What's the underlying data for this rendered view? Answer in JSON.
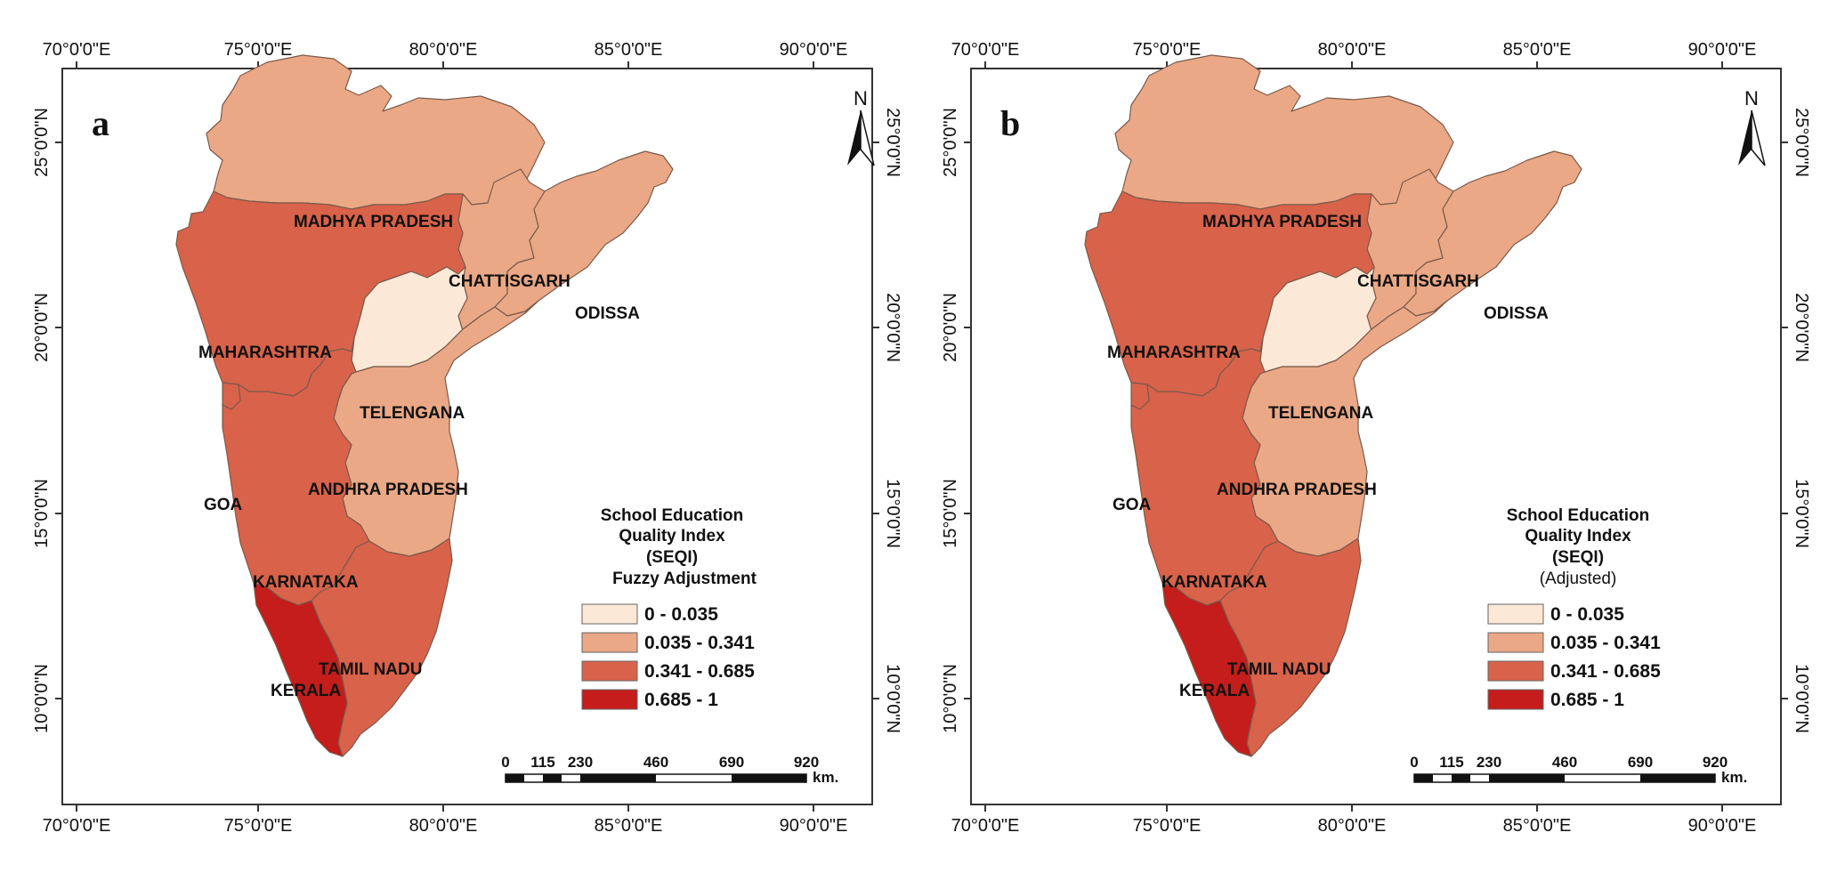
{
  "axes": {
    "lon_labels": [
      "70°0'0\"E",
      "75°0'0\"E",
      "80°0'0\"E",
      "85°0'0\"E",
      "90°0'0\"E"
    ],
    "lat_labels": [
      "25°0'0\"N",
      "20°0'0\"N",
      "15°0'0\"N",
      "10°0'0\"N"
    ]
  },
  "colors": {
    "class_1": "#fbe8d6",
    "class_2": "#eaa886",
    "class_3": "#d9624a",
    "class_4": "#c41d1b",
    "border": "#7a5a4a"
  },
  "north_arrow": {
    "label": "N"
  },
  "scale_bar": {
    "ticks": [
      "0",
      "115",
      "230",
      "460",
      "690",
      "920"
    ],
    "unit": "km."
  },
  "states": {
    "madhya_pradesh": "MADHYA PRADESH",
    "chattisgarh": "CHATTISGARH",
    "odissa": "ODISSA",
    "maharashtra": "MAHARASHTRA",
    "telengana": "TELENGANA",
    "andhra_pradesh": "ANDHRA PRADESH",
    "goa": "GOA",
    "karnataka": "KARNATAKA",
    "tamil_nadu": "TAMIL NADU",
    "kerala": "KERALA"
  },
  "legend_classes": [
    "0 - 0.035",
    "0.035 - 0.341",
    "0.341 - 0.685",
    "0.685 - 1"
  ],
  "panels": [
    {
      "letter": "a",
      "legend_title_lines": [
        "School Education",
        "Quality Index",
        "(SEQI)"
      ],
      "legend_subtitle": "Fuzzy Adjustment",
      "state_classes": {
        "madhya_pradesh": 2,
        "chattisgarh": 2,
        "odissa": 2,
        "maharashtra": 3,
        "telengana": 1,
        "andhra_pradesh": 2,
        "goa": 3,
        "karnataka": 3,
        "tamil_nadu": 3,
        "kerala": 4
      }
    },
    {
      "letter": "b",
      "legend_title_lines": [
        "School Education",
        "Quality Index",
        "(SEQI)"
      ],
      "legend_subtitle": "(Adjusted)",
      "state_classes": {
        "madhya_pradesh": 2,
        "chattisgarh": 2,
        "odissa": 2,
        "maharashtra": 3,
        "telengana": 1,
        "andhra_pradesh": 2,
        "goa": 3,
        "karnataka": 3,
        "tamil_nadu": 3,
        "kerala": 4
      }
    }
  ]
}
